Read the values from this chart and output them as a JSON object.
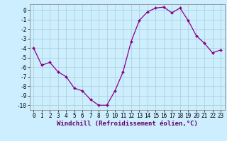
{
  "x": [
    0,
    1,
    2,
    3,
    4,
    5,
    6,
    7,
    8,
    9,
    10,
    11,
    12,
    13,
    14,
    15,
    16,
    17,
    18,
    19,
    20,
    21,
    22,
    23
  ],
  "y": [
    -4.0,
    -5.8,
    -5.5,
    -6.5,
    -7.0,
    -8.2,
    -8.5,
    -9.4,
    -10.0,
    -10.0,
    -8.5,
    -6.5,
    -3.3,
    -1.1,
    -0.2,
    0.2,
    0.3,
    -0.3,
    0.2,
    -1.1,
    -2.7,
    -3.5,
    -4.5,
    -4.2
  ],
  "line_color": "#880088",
  "marker": "D",
  "marker_size": 2.0,
  "line_width": 0.9,
  "bg_color": "#cceeff",
  "grid_color": "#aacccc",
  "xlabel": "Windchill (Refroidissement éolien,°C)",
  "xlabel_fontsize": 6.5,
  "tick_fontsize": 5.5,
  "ylim": [
    -10.5,
    0.6
  ],
  "xlim": [
    -0.5,
    23.5
  ],
  "yticks": [
    0,
    -1,
    -2,
    -3,
    -4,
    -5,
    -6,
    -7,
    -8,
    -9,
    -10
  ],
  "xticks": [
    0,
    1,
    2,
    3,
    4,
    5,
    6,
    7,
    8,
    9,
    10,
    11,
    12,
    13,
    14,
    15,
    16,
    17,
    18,
    19,
    20,
    21,
    22,
    23
  ],
  "figsize": [
    3.2,
    2.0
  ],
  "dpi": 100
}
